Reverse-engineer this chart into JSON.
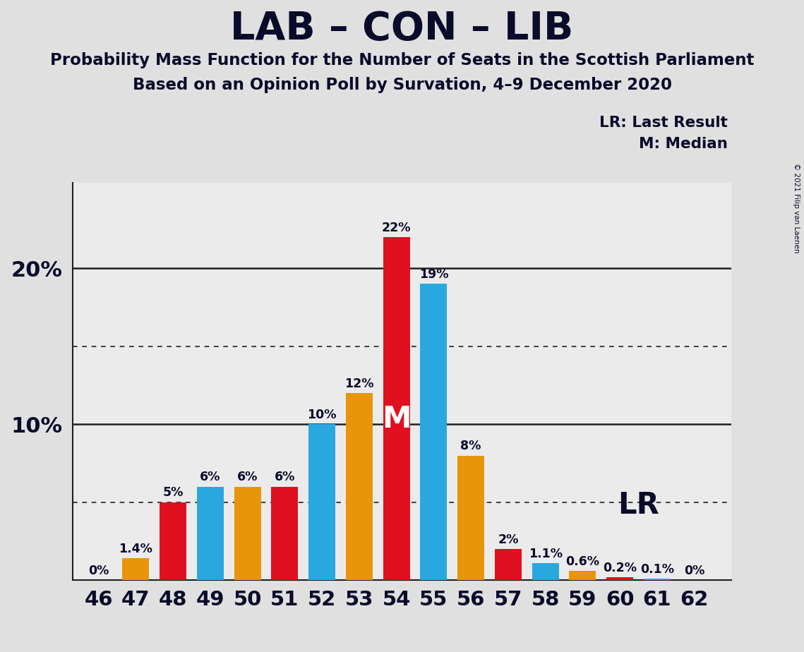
{
  "title": "LAB – CON – LIB",
  "subtitle1": "Probability Mass Function for the Number of Seats in the Scottish Parliament",
  "subtitle2": "Based on an Opinion Poll by Survation, 4–9 December 2020",
  "copyright": "© 2021 Filip van Laenen",
  "legend_lr": "LR: Last Result",
  "legend_m": "M: Median",
  "seats": [
    46,
    47,
    48,
    49,
    50,
    51,
    52,
    53,
    54,
    55,
    56,
    57,
    58,
    59,
    60,
    61,
    62
  ],
  "values": [
    0.0,
    1.4,
    5.0,
    6.0,
    6.0,
    6.0,
    10.0,
    12.0,
    22.0,
    19.0,
    8.0,
    2.0,
    1.1,
    0.6,
    0.2,
    0.1,
    0.0
  ],
  "colors": [
    "#E8950A",
    "#E8950A",
    "#E01020",
    "#29A8E0",
    "#E8950A",
    "#E01020",
    "#29A8E0",
    "#E8950A",
    "#E01020",
    "#29A8E0",
    "#E8950A",
    "#E01020",
    "#29A8E0",
    "#E8950A",
    "#E01020",
    "#29A8E0",
    "#E01020"
  ],
  "labels": [
    "0%",
    "1.4%",
    "5%",
    "6%",
    "6%",
    "6%",
    "10%",
    "12%",
    "22%",
    "19%",
    "8%",
    "2%",
    "1.1%",
    "0.6%",
    "0.2%",
    "0.1%",
    "0%"
  ],
  "median_seat": 54,
  "lr_seat": 59,
  "background_color": "#E0E0E0",
  "plot_bg_color": "#EBEBEB",
  "solid_yticks": [
    10.0,
    20.0
  ],
  "dotted_yticks": [
    5.0,
    15.0
  ],
  "ylim_max": 25.5,
  "bar_width": 0.72
}
